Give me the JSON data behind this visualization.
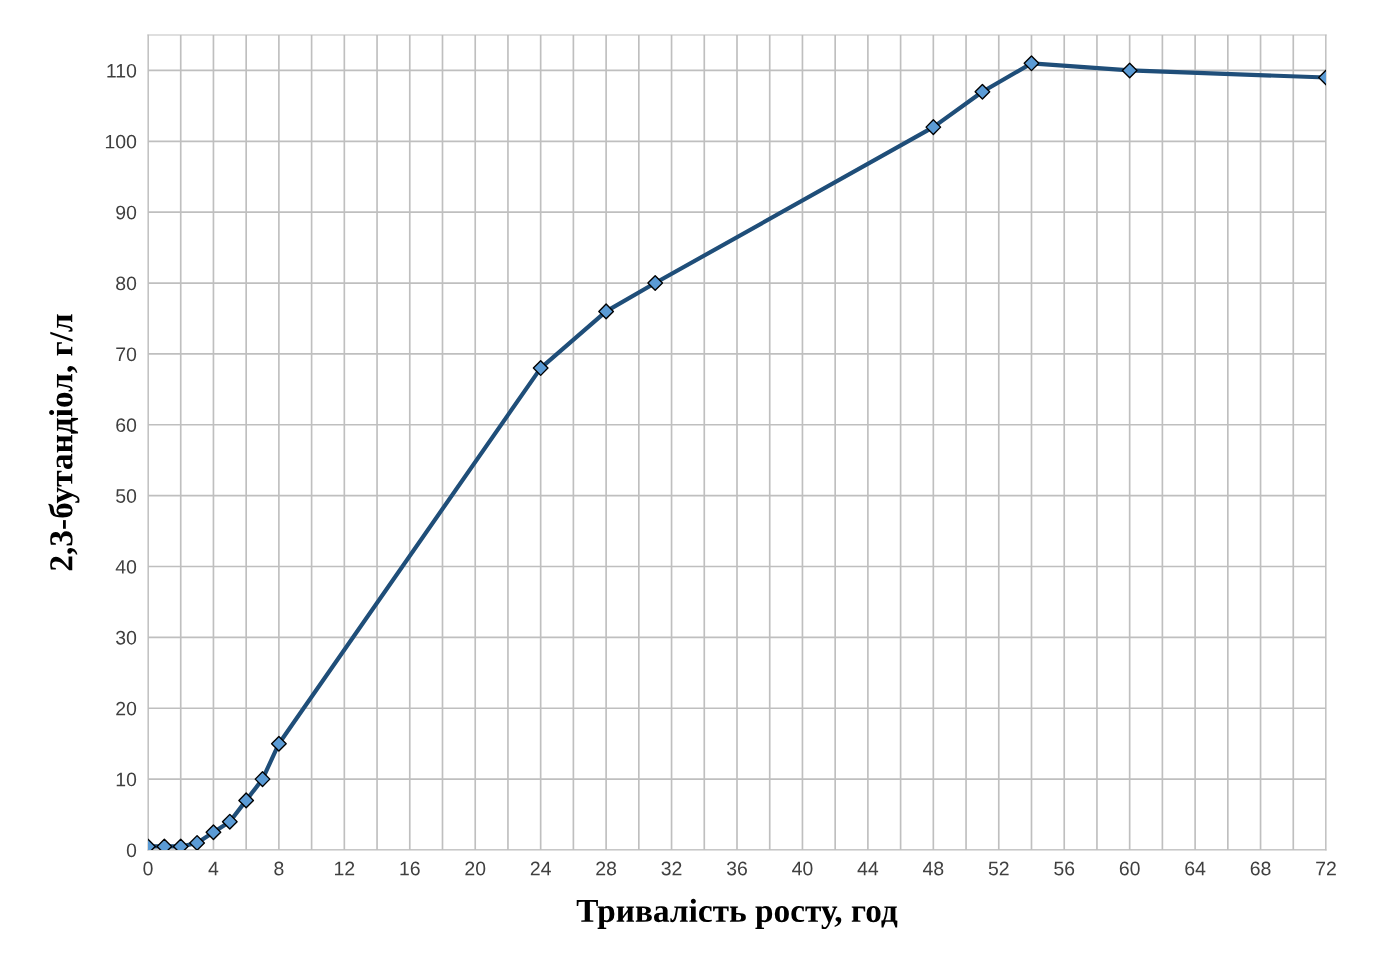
{
  "chart_data": {
    "type": "line",
    "xlabel": "Тривалість росту, год",
    "ylabel": "2,3-бутандіол, г/л",
    "x": [
      0,
      1,
      2,
      3,
      4,
      5,
      6,
      7,
      8,
      24,
      28,
      31,
      48,
      51,
      54,
      60,
      72
    ],
    "series": [
      {
        "color": "#1f4e79",
        "values": [
          0.5,
          0.5,
          0.5,
          1,
          2.5,
          4,
          7,
          10,
          15,
          68,
          76,
          80,
          102,
          107,
          111,
          110,
          109
        ]
      }
    ],
    "marker": "diamond",
    "line_style": "solid",
    "grid": true,
    "legend": false,
    "xlim": [
      0,
      72
    ],
    "ylim": [
      0,
      115
    ],
    "xticks": [
      0,
      {
        "value": 2,
        "label": null
      },
      4,
      {
        "value": 6,
        "label": null
      },
      8,
      {
        "value": 10,
        "label": null
      },
      12,
      {
        "value": 14,
        "label": null
      },
      16,
      {
        "value": 18,
        "label": null
      },
      20,
      {
        "value": 22,
        "label": null
      },
      24,
      {
        "value": 26,
        "label": null
      },
      28,
      {
        "value": 30,
        "label": null
      },
      32,
      {
        "value": 34,
        "label": null
      },
      36,
      {
        "value": 38,
        "label": null
      },
      40,
      {
        "value": 42,
        "label": null
      },
      44,
      {
        "value": 46,
        "label": null
      },
      48,
      {
        "value": 50,
        "label": null
      },
      52,
      {
        "value": 54,
        "label": null
      },
      56,
      {
        "value": 58,
        "label": null
      },
      60,
      {
        "value": 62,
        "label": null
      },
      64,
      {
        "value": 66,
        "label": null
      },
      68,
      {
        "value": 70,
        "label": null
      },
      72
    ],
    "yticks": [
      0,
      10,
      20,
      30,
      40,
      50,
      60,
      70,
      80,
      90,
      100,
      110
    ]
  }
}
